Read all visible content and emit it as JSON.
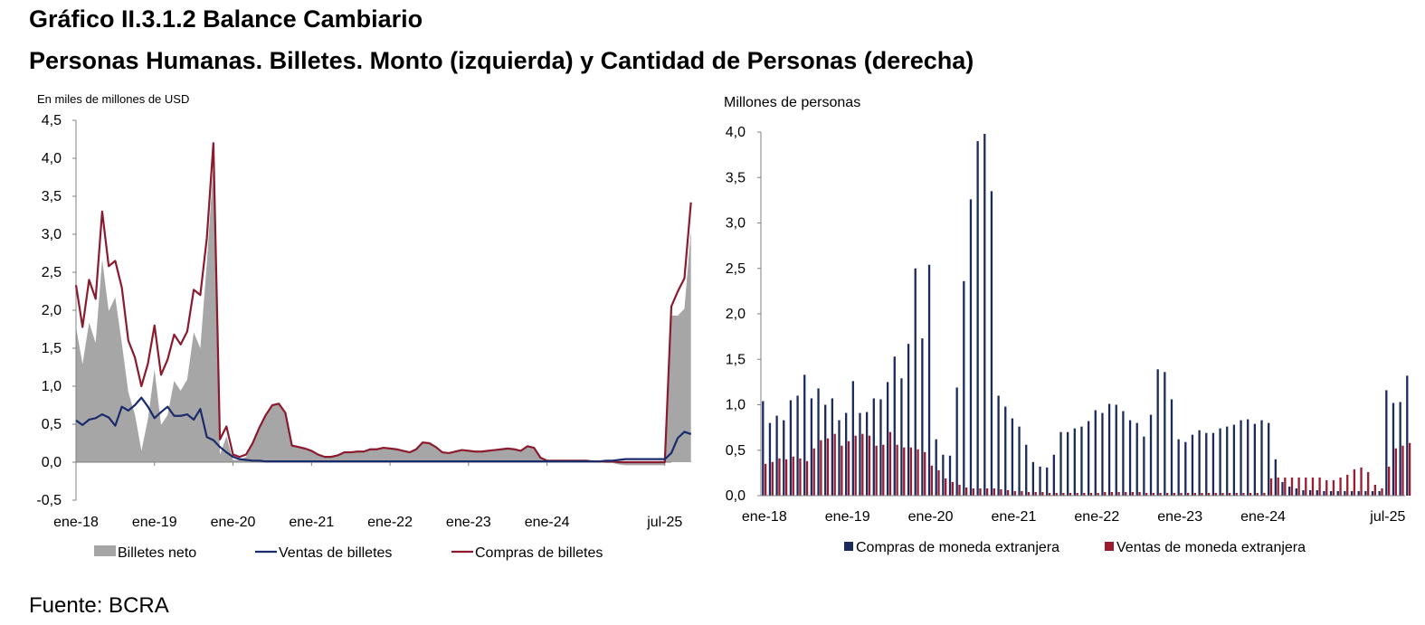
{
  "header": {
    "title_line1": "Gráfico II.3.1.2 Balance Cambiario",
    "title_line2": "Personas Humanas. Billetes. Monto (izquierda) y Cantidad de Personas (derecha)"
  },
  "footer": {
    "source": "Fuente: BCRA"
  },
  "colors": {
    "net": "#a6a6a6",
    "sales_line": "#1a2b6b",
    "purchases_line": "#8b1a2e",
    "bar_purchases": "#1c2b5e",
    "bar_sales": "#9b1b30"
  },
  "chart_data": [
    {
      "type": "line",
      "title": "",
      "ylabel": "En miles de millones de USD",
      "ylim": [
        -0.5,
        4.5
      ],
      "yticks": [
        "-0,5",
        "0,0",
        "0,5",
        "1,0",
        "1,5",
        "2,0",
        "2,5",
        "3,0",
        "3,5",
        "4,0",
        "4,5"
      ],
      "xtick_labels": [
        "ene-18",
        "ene-19",
        "ene-20",
        "ene-21",
        "ene-22",
        "ene-23",
        "ene-24",
        "jul-25"
      ],
      "x_start": "2018-01",
      "x_end": "2025-08",
      "legend": [
        "Billetes neto",
        "Ventas de billetes",
        "Compras de billetes"
      ],
      "legend_position": "bottom",
      "series": [
        {
          "name": "Compras de billetes",
          "kind": "line",
          "values": [
            2.33,
            1.78,
            2.4,
            2.15,
            3.3,
            2.58,
            2.65,
            2.3,
            1.6,
            1.38,
            1.0,
            1.3,
            1.8,
            1.15,
            1.35,
            1.68,
            1.55,
            1.72,
            2.27,
            2.2,
            2.95,
            4.2,
            0.3,
            0.47,
            0.1,
            0.07,
            0.1,
            0.25,
            0.45,
            0.62,
            0.75,
            0.77,
            0.65,
            0.22,
            0.2,
            0.18,
            0.15,
            0.1,
            0.07,
            0.07,
            0.09,
            0.13,
            0.13,
            0.14,
            0.14,
            0.17,
            0.17,
            0.19,
            0.18,
            0.17,
            0.15,
            0.13,
            0.17,
            0.26,
            0.25,
            0.2,
            0.13,
            0.12,
            0.14,
            0.16,
            0.15,
            0.14,
            0.14,
            0.15,
            0.16,
            0.17,
            0.18,
            0.17,
            0.15,
            0.21,
            0.19,
            0.06,
            0.02,
            0.02,
            0.02,
            0.02,
            0.02,
            0.02,
            0.02,
            0.01,
            0.01,
            0.01,
            0.01,
            0.0,
            0.0,
            0.0,
            0.0,
            0.0,
            0.0,
            0.0,
            0.0,
            2.05,
            2.25,
            2.42,
            3.42
          ]
        },
        {
          "name": "Ventas de billetes",
          "kind": "line",
          "values": [
            0.55,
            0.49,
            0.56,
            0.58,
            0.63,
            0.59,
            0.48,
            0.73,
            0.68,
            0.75,
            0.85,
            0.73,
            0.58,
            0.66,
            0.73,
            0.61,
            0.61,
            0.63,
            0.56,
            0.7,
            0.33,
            0.29,
            0.2,
            0.13,
            0.07,
            0.04,
            0.03,
            0.02,
            0.02,
            0.01,
            0.01,
            0.01,
            0.01,
            0.01,
            0.01,
            0.01,
            0.01,
            0.01,
            0.01,
            0.01,
            0.01,
            0.01,
            0.01,
            0.01,
            0.01,
            0.01,
            0.01,
            0.01,
            0.01,
            0.01,
            0.01,
            0.01,
            0.01,
            0.01,
            0.01,
            0.01,
            0.01,
            0.01,
            0.01,
            0.01,
            0.01,
            0.01,
            0.01,
            0.01,
            0.01,
            0.01,
            0.01,
            0.01,
            0.01,
            0.01,
            0.01,
            0.01,
            0.01,
            0.01,
            0.01,
            0.01,
            0.01,
            0.01,
            0.01,
            0.01,
            0.01,
            0.02,
            0.02,
            0.03,
            0.04,
            0.04,
            0.04,
            0.04,
            0.04,
            0.04,
            0.04,
            0.12,
            0.32,
            0.4,
            0.37
          ]
        },
        {
          "name": "Billetes neto",
          "kind": "area",
          "values": [
            1.78,
            1.29,
            1.84,
            1.57,
            2.67,
            1.99,
            2.17,
            1.57,
            0.92,
            0.63,
            0.15,
            0.57,
            1.22,
            0.49,
            0.62,
            1.07,
            0.94,
            1.09,
            1.71,
            1.5,
            2.62,
            3.91,
            0.1,
            0.34,
            0.03,
            0.03,
            0.07,
            0.23,
            0.43,
            0.61,
            0.74,
            0.76,
            0.64,
            0.21,
            0.19,
            0.17,
            0.14,
            0.09,
            0.06,
            0.06,
            0.08,
            0.12,
            0.12,
            0.13,
            0.13,
            0.16,
            0.16,
            0.18,
            0.17,
            0.16,
            0.14,
            0.12,
            0.16,
            0.25,
            0.24,
            0.19,
            0.12,
            0.11,
            0.13,
            0.15,
            0.14,
            0.13,
            0.13,
            0.14,
            0.15,
            0.16,
            0.17,
            0.16,
            0.14,
            0.2,
            0.18,
            0.05,
            0.01,
            0.01,
            0.01,
            0.01,
            0.01,
            0.01,
            0.01,
            0.0,
            0.0,
            -0.01,
            -0.01,
            -0.03,
            -0.04,
            -0.04,
            -0.04,
            -0.04,
            -0.04,
            -0.04,
            -0.04,
            1.93,
            1.93,
            2.02,
            3.05
          ]
        }
      ]
    },
    {
      "type": "bar",
      "title": "",
      "ylabel": "Millones de personas",
      "ylim": [
        0.0,
        4.0
      ],
      "yticks": [
        "0,0",
        "0,5",
        "1,0",
        "1,5",
        "2,0",
        "2,5",
        "3,0",
        "3,5",
        "4,0"
      ],
      "xtick_labels": [
        "ene-18",
        "ene-19",
        "ene-20",
        "ene-21",
        "ene-22",
        "ene-23",
        "ene-24",
        "jul-25"
      ],
      "x_start": "2018-01",
      "x_end": "2025-09",
      "legend": [
        "Compras de moneda extranjera",
        "Ventas de moneda extranjera"
      ],
      "legend_position": "bottom",
      "series": [
        {
          "name": "Compras de moneda extranjera",
          "values": [
            1.04,
            0.8,
            0.88,
            0.83,
            1.05,
            1.1,
            1.33,
            1.07,
            1.18,
            1.0,
            1.07,
            0.83,
            0.91,
            1.26,
            0.91,
            0.92,
            1.07,
            1.06,
            1.25,
            1.53,
            1.29,
            1.67,
            2.5,
            1.73,
            2.54,
            0.62,
            0.45,
            0.44,
            1.19,
            2.36,
            3.26,
            3.9,
            3.98,
            3.35,
            1.1,
            0.98,
            0.85,
            0.76,
            0.56,
            0.37,
            0.32,
            0.31,
            0.45,
            0.7,
            0.7,
            0.74,
            0.76,
            0.82,
            0.94,
            0.91,
            1.01,
            1.0,
            0.93,
            0.83,
            0.8,
            0.65,
            0.89,
            1.39,
            1.36,
            1.06,
            0.62,
            0.59,
            0.67,
            0.72,
            0.69,
            0.69,
            0.74,
            0.76,
            0.78,
            0.83,
            0.84,
            0.79,
            0.83,
            0.8,
            0.4,
            0.15,
            0.1,
            0.08,
            0.06,
            0.06,
            0.06,
            0.05,
            0.05,
            0.05,
            0.05,
            0.05,
            0.05,
            0.05,
            0.05,
            0.05,
            1.16,
            1.02,
            1.03,
            1.32
          ]
        },
        {
          "name": "Ventas de moneda extranjera",
          "values": [
            0.35,
            0.37,
            0.41,
            0.4,
            0.43,
            0.41,
            0.38,
            0.52,
            0.61,
            0.63,
            0.68,
            0.55,
            0.6,
            0.66,
            0.68,
            0.66,
            0.55,
            0.56,
            0.7,
            0.56,
            0.53,
            0.53,
            0.51,
            0.48,
            0.33,
            0.28,
            0.19,
            0.15,
            0.12,
            0.09,
            0.08,
            0.08,
            0.08,
            0.08,
            0.07,
            0.06,
            0.05,
            0.05,
            0.04,
            0.04,
            0.04,
            0.03,
            0.03,
            0.03,
            0.03,
            0.03,
            0.03,
            0.03,
            0.03,
            0.04,
            0.04,
            0.04,
            0.04,
            0.04,
            0.04,
            0.03,
            0.03,
            0.03,
            0.03,
            0.03,
            0.03,
            0.03,
            0.03,
            0.03,
            0.03,
            0.03,
            0.03,
            0.03,
            0.03,
            0.03,
            0.03,
            0.03,
            0.03,
            0.19,
            0.2,
            0.2,
            0.2,
            0.2,
            0.2,
            0.2,
            0.2,
            0.17,
            0.17,
            0.2,
            0.23,
            0.29,
            0.31,
            0.26,
            0.12,
            0.08,
            0.32,
            0.52,
            0.55,
            0.58
          ]
        }
      ]
    }
  ]
}
